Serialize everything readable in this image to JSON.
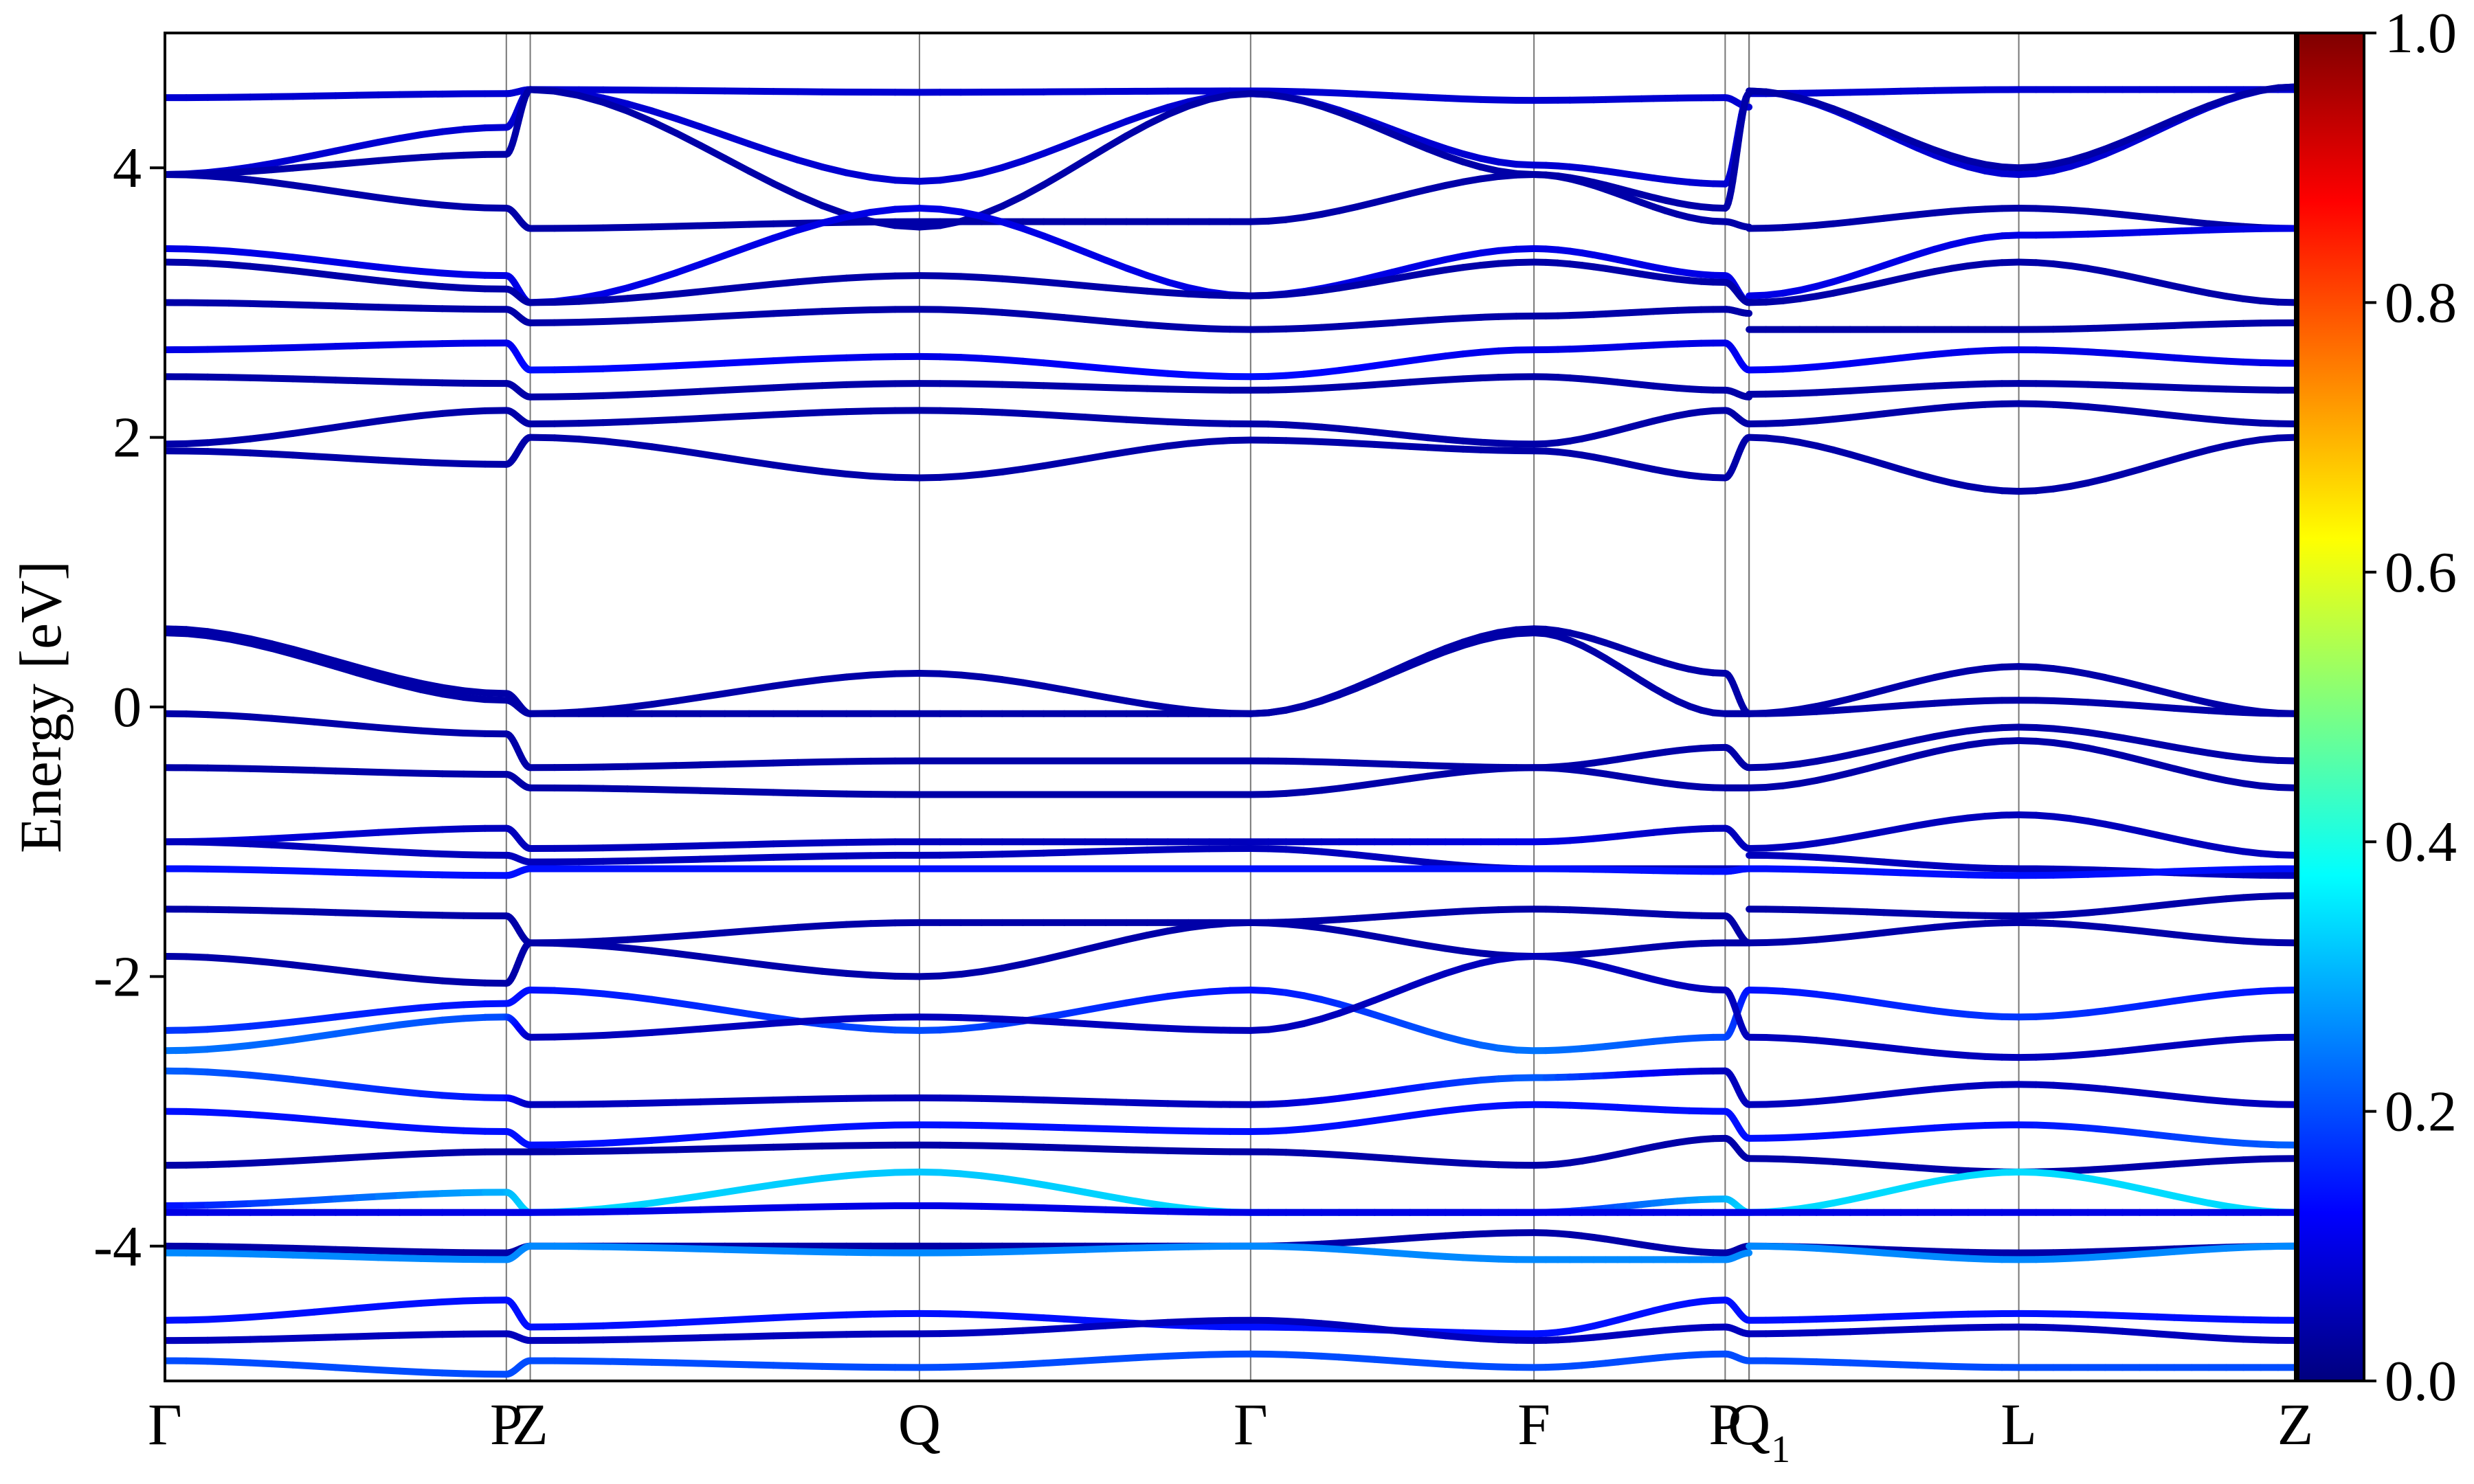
{
  "chart_data": {
    "type": "line",
    "title": "",
    "xlabel": "",
    "ylabel": "Energy [eV]",
    "ylim": [
      -5,
      5
    ],
    "y_ticks": [
      -4,
      -2,
      0,
      2,
      4
    ],
    "y_tick_labels": [
      "-4",
      "-2",
      "0",
      "2",
      "4"
    ],
    "x_range": [
      0,
      6.24
    ],
    "kpoints": [
      {
        "label": "Γ",
        "x": 0.0
      },
      {
        "label": "P",
        "x": 1.0
      },
      {
        "label": "Z",
        "x": 1.07
      },
      {
        "label": "Q",
        "x": 2.21
      },
      {
        "label": "Γ",
        "x": 3.18
      },
      {
        "label": "F",
        "x": 4.01
      },
      {
        "label": "P",
        "x": 4.57
      },
      {
        "label": "Q",
        "x": 4.64
      },
      {
        "label": "1",
        "x": 4.64
      },
      {
        "label": "L",
        "x": 5.43
      },
      {
        "label": "Z",
        "x": 6.24
      }
    ],
    "colorbar": {
      "min": 0.0,
      "max": 1.0,
      "ticks": [
        0.0,
        0.2,
        0.4,
        0.6,
        0.8,
        1.0
      ],
      "tick_labels": [
        "0.0",
        "0.2",
        "0.4",
        "0.6",
        "0.8",
        "1.0"
      ],
      "colormap": [
        "#00007f",
        "#0000ff",
        "#007fff",
        "#00ffff",
        "#7fff7f",
        "#ffff00",
        "#ff7f00",
        "#ff0000",
        "#7f0000"
      ]
    },
    "bands": [
      {
        "energies": [
          4.52,
          4.55,
          4.58,
          4.56,
          4.57,
          4.5,
          4.52,
          4.45,
          4.55,
          4.58,
          4.58
        ],
        "weights": [
          0.08,
          0.08,
          0.08,
          0.08,
          0.08,
          0.08,
          0.08,
          0.08,
          0.08,
          0.08,
          0.08
        ]
      },
      {
        "energies": [
          3.95,
          4.3,
          4.58,
          3.9,
          4.55,
          4.02,
          3.88,
          4.55,
          4.57,
          3.95,
          4.6
        ],
        "weights": [
          0.08,
          0.08,
          0.08,
          0.08,
          0.08,
          0.08,
          0.08,
          0.08,
          0.08,
          0.08,
          0.08
        ]
      },
      {
        "energies": [
          3.95,
          4.1,
          4.58,
          3.56,
          4.55,
          3.95,
          3.7,
          4.55,
          4.57,
          4.0,
          4.6
        ],
        "weights": [
          0.04,
          0.04,
          0.04,
          0.04,
          0.04,
          0.04,
          0.04,
          0.04,
          0.04,
          0.04,
          0.04
        ]
      },
      {
        "energies": [
          3.95,
          3.7,
          3.55,
          3.6,
          3.6,
          3.95,
          3.6,
          3.56,
          3.55,
          3.7,
          3.55
        ],
        "weights": [
          0.04,
          0.04,
          0.04,
          0.04,
          0.04,
          0.04,
          0.04,
          0.04,
          0.04,
          0.04,
          0.04
        ]
      },
      {
        "energies": [
          3.4,
          3.2,
          3.0,
          3.7,
          3.05,
          3.4,
          3.2,
          3.0,
          3.05,
          3.5,
          3.55
        ],
        "weights": [
          0.1,
          0.1,
          0.1,
          0.1,
          0.1,
          0.1,
          0.1,
          0.1,
          0.1,
          0.1,
          0.1
        ]
      },
      {
        "energies": [
          3.3,
          3.1,
          3.0,
          3.2,
          3.05,
          3.3,
          3.15,
          3.0,
          3.0,
          3.3,
          3.0
        ],
        "weights": [
          0.04,
          0.04,
          0.04,
          0.04,
          0.04,
          0.04,
          0.04,
          0.04,
          0.04,
          0.04,
          0.04
        ]
      },
      {
        "energies": [
          3.0,
          2.95,
          2.85,
          2.95,
          2.8,
          2.9,
          2.95,
          2.92,
          2.8,
          2.8,
          2.85
        ],
        "weights": [
          0.04,
          0.04,
          0.04,
          0.04,
          0.04,
          0.04,
          0.04,
          0.04,
          0.04,
          0.04,
          0.04
        ]
      },
      {
        "energies": [
          2.65,
          2.7,
          2.5,
          2.6,
          2.45,
          2.65,
          2.7,
          2.5,
          2.5,
          2.65,
          2.55
        ],
        "weights": [
          0.1,
          0.1,
          0.14,
          0.1,
          0.14,
          0.1,
          0.1,
          0.12,
          0.12,
          0.1,
          0.1
        ]
      },
      {
        "energies": [
          2.45,
          2.4,
          2.3,
          2.4,
          2.35,
          2.45,
          2.35,
          2.3,
          2.32,
          2.4,
          2.35
        ],
        "weights": [
          0.04,
          0.04,
          0.04,
          0.04,
          0.04,
          0.04,
          0.04,
          0.04,
          0.04,
          0.04,
          0.04
        ]
      },
      {
        "energies": [
          1.95,
          2.2,
          2.1,
          2.2,
          2.1,
          1.95,
          2.2,
          2.1,
          2.1,
          2.25,
          2.1
        ],
        "weights": [
          0.04,
          0.04,
          0.04,
          0.04,
          0.04,
          0.04,
          0.04,
          0.04,
          0.04,
          0.04,
          0.04
        ]
      },
      {
        "energies": [
          1.9,
          1.8,
          2.0,
          1.7,
          1.98,
          1.9,
          1.7,
          2.0,
          2.0,
          1.6,
          2.0
        ],
        "weights": [
          0.04,
          0.04,
          0.04,
          0.04,
          0.04,
          0.04,
          0.04,
          0.04,
          0.04,
          0.04,
          0.04
        ]
      },
      {
        "energies": [
          0.58,
          0.1,
          -0.05,
          0.25,
          -0.05,
          0.58,
          0.25,
          -0.05,
          -0.05,
          0.3,
          -0.05
        ],
        "weights": [
          0.04,
          0.04,
          0.04,
          0.04,
          0.04,
          0.04,
          0.04,
          0.04,
          0.04,
          0.04,
          0.04
        ]
      },
      {
        "energies": [
          0.55,
          0.05,
          -0.05,
          -0.05,
          -0.05,
          0.55,
          -0.05,
          -0.05,
          -0.05,
          0.05,
          -0.05
        ],
        "weights": [
          0.04,
          0.04,
          0.04,
          0.04,
          0.04,
          0.04,
          0.04,
          0.04,
          0.04,
          0.04,
          0.04
        ]
      },
      {
        "energies": [
          -0.05,
          -0.2,
          -0.45,
          -0.4,
          -0.4,
          -0.45,
          -0.3,
          -0.45,
          -0.45,
          -0.15,
          -0.4
        ],
        "weights": [
          0.04,
          0.04,
          0.04,
          0.04,
          0.04,
          0.04,
          0.04,
          0.04,
          0.04,
          0.04,
          0.04
        ]
      },
      {
        "energies": [
          -0.45,
          -0.5,
          -0.6,
          -0.65,
          -0.65,
          -0.45,
          -0.6,
          -0.6,
          -0.6,
          -0.25,
          -0.6
        ],
        "weights": [
          0.04,
          0.04,
          0.04,
          0.04,
          0.04,
          0.04,
          0.04,
          0.04,
          0.04,
          0.04,
          0.04
        ]
      },
      {
        "energies": [
          -1.0,
          -0.9,
          -1.05,
          -1.0,
          -1.0,
          -1.0,
          -0.9,
          -1.05,
          -1.05,
          -0.8,
          -1.1
        ],
        "weights": [
          0.1,
          0.06,
          0.06,
          0.06,
          0.06,
          0.1,
          0.06,
          0.06,
          0.06,
          0.06,
          0.06
        ]
      },
      {
        "energies": [
          -1.0,
          -1.1,
          -1.15,
          -1.1,
          -1.05,
          -1.2,
          -1.2,
          -1.2,
          -1.1,
          -1.2,
          -1.25
        ],
        "weights": [
          0.06,
          0.06,
          0.06,
          0.06,
          0.06,
          0.06,
          0.06,
          0.06,
          0.06,
          0.06,
          0.06
        ]
      },
      {
        "energies": [
          -1.2,
          -1.25,
          -1.2,
          -1.2,
          -1.2,
          -1.2,
          -1.22,
          -1.2,
          -1.2,
          -1.25,
          -1.2
        ],
        "weights": [
          0.14,
          0.14,
          0.14,
          0.14,
          0.14,
          0.14,
          0.14,
          0.14,
          0.14,
          0.14,
          0.14
        ]
      },
      {
        "energies": [
          -1.5,
          -1.55,
          -1.75,
          -1.6,
          -1.6,
          -1.5,
          -1.55,
          -1.75,
          -1.5,
          -1.55,
          -1.4
        ],
        "weights": [
          0.04,
          0.04,
          0.04,
          0.04,
          0.04,
          0.04,
          0.04,
          0.04,
          0.04,
          0.04,
          0.04
        ]
      },
      {
        "energies": [
          -1.85,
          -2.05,
          -1.75,
          -2.0,
          -1.6,
          -1.85,
          -1.75,
          -1.75,
          -1.75,
          -1.6,
          -1.75
        ],
        "weights": [
          0.04,
          0.04,
          0.04,
          0.04,
          0.04,
          0.04,
          0.04,
          0.04,
          0.04,
          0.04,
          0.04
        ]
      },
      {
        "energies": [
          -2.4,
          -2.2,
          -2.1,
          -2.4,
          -2.1,
          -2.55,
          -2.45,
          -2.1,
          -2.1,
          -2.3,
          -2.1
        ],
        "weights": [
          0.18,
          0.14,
          0.14,
          0.2,
          0.14,
          0.24,
          0.2,
          0.14,
          0.14,
          0.18,
          0.14
        ]
      },
      {
        "energies": [
          -2.55,
          -2.3,
          -2.45,
          -2.3,
          -2.4,
          -1.85,
          -2.1,
          -2.45,
          -2.45,
          -2.6,
          -2.45
        ],
        "weights": [
          0.24,
          0.2,
          0.06,
          0.06,
          0.06,
          0.06,
          0.06,
          0.06,
          0.06,
          0.06,
          0.06
        ]
      },
      {
        "energies": [
          -2.7,
          -2.9,
          -2.95,
          -2.9,
          -2.95,
          -2.75,
          -2.7,
          -2.95,
          -2.95,
          -2.8,
          -2.95
        ],
        "weights": [
          0.22,
          0.14,
          0.06,
          0.06,
          0.06,
          0.22,
          0.06,
          0.06,
          0.06,
          0.06,
          0.06
        ]
      },
      {
        "energies": [
          -3.0,
          -3.15,
          -3.25,
          -3.1,
          -3.15,
          -2.95,
          -3.0,
          -3.2,
          -3.2,
          -3.1,
          -3.25
        ],
        "weights": [
          0.14,
          0.14,
          0.14,
          0.14,
          0.14,
          0.14,
          0.14,
          0.14,
          0.14,
          0.14,
          0.22
        ]
      },
      {
        "energies": [
          -3.4,
          -3.3,
          -3.3,
          -3.25,
          -3.3,
          -3.4,
          -3.2,
          -3.35,
          -3.35,
          -3.45,
          -3.35
        ],
        "weights": [
          0.04,
          0.04,
          0.04,
          0.04,
          0.04,
          0.04,
          0.04,
          0.04,
          0.04,
          0.04,
          0.04
        ]
      },
      {
        "energies": [
          -3.7,
          -3.6,
          -3.75,
          -3.45,
          -3.75,
          -3.75,
          -3.65,
          -3.75,
          -3.75,
          -3.45,
          -3.75
        ],
        "weights": [
          0.14,
          0.3,
          0.34,
          0.32,
          0.34,
          0.14,
          0.3,
          0.34,
          0.34,
          0.34,
          0.34
        ]
      },
      {
        "energies": [
          -3.75,
          -3.75,
          -3.75,
          -3.7,
          -3.75,
          -3.75,
          -3.75,
          -3.75,
          -3.75,
          -3.75,
          -3.75
        ],
        "weights": [
          0.1,
          0.1,
          0.1,
          0.1,
          0.1,
          0.1,
          0.1,
          0.1,
          0.1,
          0.1,
          0.1
        ]
      },
      {
        "energies": [
          -4.0,
          -4.05,
          -4.0,
          -4.0,
          -4.0,
          -3.9,
          -4.05,
          -4.0,
          -4.0,
          -4.05,
          -4.0
        ],
        "weights": [
          0.04,
          0.04,
          0.04,
          0.04,
          0.04,
          0.04,
          0.04,
          0.04,
          0.04,
          0.04,
          0.04
        ]
      },
      {
        "energies": [
          -4.05,
          -4.1,
          -4.0,
          -4.05,
          -4.0,
          -4.1,
          -4.1,
          -4.05,
          -4.0,
          -4.1,
          -4.0
        ],
        "weights": [
          0.26,
          0.26,
          0.26,
          0.26,
          0.26,
          0.26,
          0.26,
          0.26,
          0.26,
          0.26,
          0.26
        ]
      },
      {
        "energies": [
          -4.55,
          -4.4,
          -4.6,
          -4.5,
          -4.6,
          -4.65,
          -4.4,
          -4.55,
          -4.55,
          -4.5,
          -4.55
        ],
        "weights": [
          0.14,
          0.14,
          0.14,
          0.14,
          0.14,
          0.14,
          0.14,
          0.14,
          0.14,
          0.14,
          0.14
        ]
      },
      {
        "energies": [
          -4.7,
          -4.65,
          -4.7,
          -4.65,
          -4.55,
          -4.7,
          -4.6,
          -4.65,
          -4.65,
          -4.6,
          -4.7
        ],
        "weights": [
          0.06,
          0.06,
          0.06,
          0.06,
          0.06,
          0.06,
          0.06,
          0.06,
          0.06,
          0.06,
          0.06
        ]
      },
      {
        "energies": [
          -4.85,
          -4.95,
          -4.85,
          -4.9,
          -4.8,
          -4.9,
          -4.8,
          -4.85,
          -4.85,
          -4.9,
          -4.9
        ],
        "weights": [
          0.2,
          0.2,
          0.2,
          0.2,
          0.2,
          0.2,
          0.2,
          0.2,
          0.2,
          0.2,
          0.2
        ]
      }
    ]
  }
}
